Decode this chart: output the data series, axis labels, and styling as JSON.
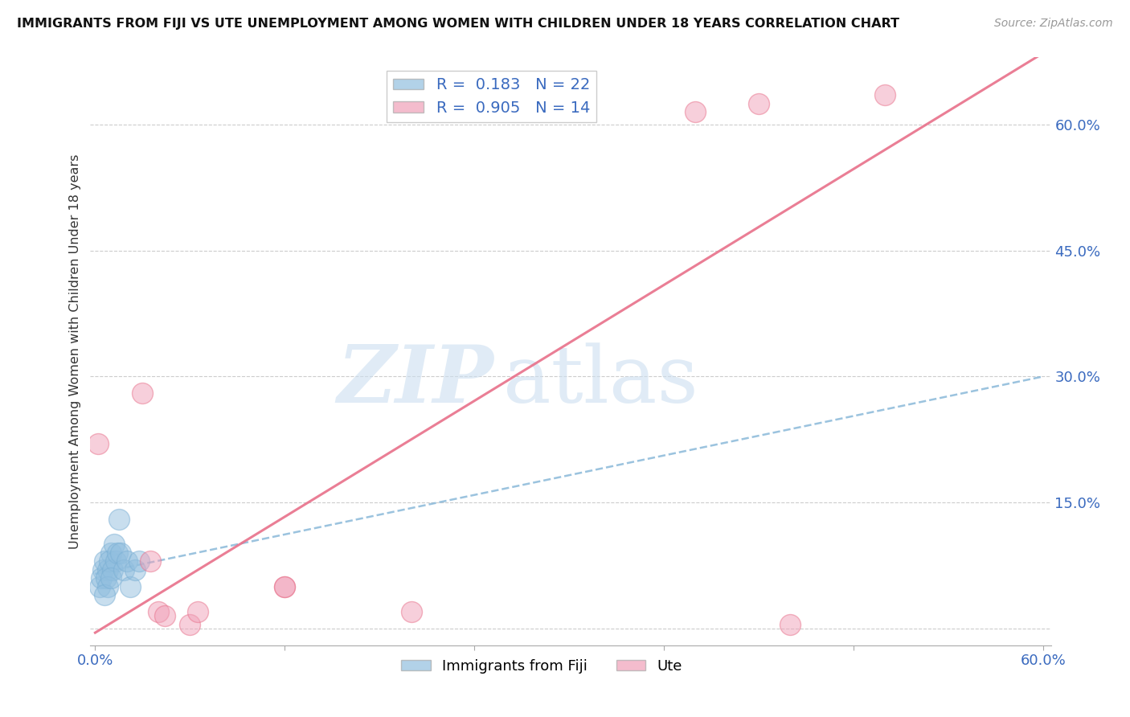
{
  "title": "IMMIGRANTS FROM FIJI VS UTE UNEMPLOYMENT AMONG WOMEN WITH CHILDREN UNDER 18 YEARS CORRELATION CHART",
  "source": "Source: ZipAtlas.com",
  "ylabel": "Unemployment Among Women with Children Under 18 years",
  "xlim": [
    0.0,
    0.6
  ],
  "ylim": [
    -0.02,
    0.68
  ],
  "yticks": [
    0.0,
    0.15,
    0.3,
    0.45,
    0.6
  ],
  "xticks": [
    0.0,
    0.12,
    0.24,
    0.36,
    0.48,
    0.6
  ],
  "fiji_color": "#92bfdf",
  "ute_color": "#f0a0b8",
  "fiji_R": 0.183,
  "fiji_N": 22,
  "ute_R": 0.905,
  "ute_N": 14,
  "fiji_line_color": "#7aafd4",
  "ute_line_color": "#e8708a",
  "watermark_zip": "ZIP",
  "watermark_atlas": "atlas",
  "fiji_scatter_x": [
    0.003,
    0.005,
    0.004,
    0.006,
    0.008,
    0.01,
    0.007,
    0.009,
    0.011,
    0.012,
    0.013,
    0.015,
    0.008,
    0.006,
    0.014,
    0.01,
    0.016,
    0.018,
    0.02,
    0.022,
    0.025,
    0.028
  ],
  "fiji_scatter_y": [
    0.05,
    0.07,
    0.06,
    0.08,
    0.07,
    0.09,
    0.06,
    0.08,
    0.07,
    0.1,
    0.08,
    0.13,
    0.05,
    0.04,
    0.09,
    0.06,
    0.09,
    0.07,
    0.08,
    0.05,
    0.07,
    0.08
  ],
  "ute_scatter_x": [
    0.002,
    0.03,
    0.035,
    0.06,
    0.065,
    0.12,
    0.12,
    0.2,
    0.38,
    0.42,
    0.44,
    0.5,
    0.04,
    0.044
  ],
  "ute_scatter_y": [
    0.22,
    0.28,
    0.08,
    0.005,
    0.02,
    0.05,
    0.05,
    0.02,
    0.615,
    0.625,
    0.005,
    0.635,
    0.02,
    0.015
  ],
  "fiji_line_x0": 0.0,
  "fiji_line_y0": 0.065,
  "fiji_line_x1": 0.6,
  "fiji_line_y1": 0.3,
  "ute_line_x0": 0.0,
  "ute_line_y0": -0.005,
  "ute_line_x1": 0.6,
  "ute_line_y1": 0.685
}
